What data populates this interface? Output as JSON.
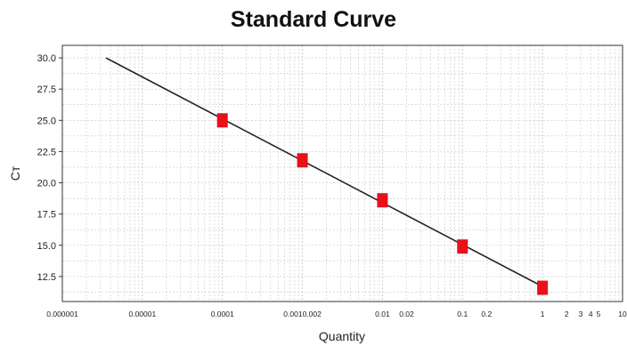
{
  "chart_data": {
    "type": "scatter",
    "title": "Standard Curve",
    "xlabel": "Quantity",
    "ylabel": "Cт",
    "x_scale": "log",
    "xlim": [
      1e-06,
      10
    ],
    "ylim": [
      10.5,
      31
    ],
    "grid": true,
    "x_tick_labels": [
      {
        "value": 1e-06,
        "label": "0.000001"
      },
      {
        "value": 1e-05,
        "label": "0.00001"
      },
      {
        "value": 0.0001,
        "label": "0.0001"
      },
      {
        "value": 0.001,
        "label": "0.0010.002"
      },
      {
        "value": 0.01,
        "label": "0.01"
      },
      {
        "value": 0.02,
        "label": "0.02"
      },
      {
        "value": 0.1,
        "label": "0.1"
      },
      {
        "value": 0.2,
        "label": "0.2"
      },
      {
        "value": 1,
        "label": "1"
      },
      {
        "value": 2,
        "label": "2"
      },
      {
        "value": 3,
        "label": "3"
      },
      {
        "value": 4,
        "label": "4"
      },
      {
        "value": 5,
        "label": "5"
      },
      {
        "value": 10,
        "label": "10"
      }
    ],
    "y_tick_labels": [
      "12.5",
      "15.0",
      "17.5",
      "20.0",
      "22.5",
      "25.0",
      "27.5",
      "30.0"
    ],
    "points": [
      {
        "x": 0.0001,
        "y": 25.0
      },
      {
        "x": 0.001,
        "y": 21.8
      },
      {
        "x": 0.01,
        "y": 18.6
      },
      {
        "x": 0.1,
        "y": 14.9
      },
      {
        "x": 1,
        "y": 11.6
      }
    ],
    "fit_line": {
      "x": [
        3.5e-06,
        1
      ],
      "y": [
        30.0,
        11.7
      ]
    },
    "colors": {
      "points": "#e8101a",
      "line": "#222222",
      "grid": "#c8c8c8"
    }
  }
}
